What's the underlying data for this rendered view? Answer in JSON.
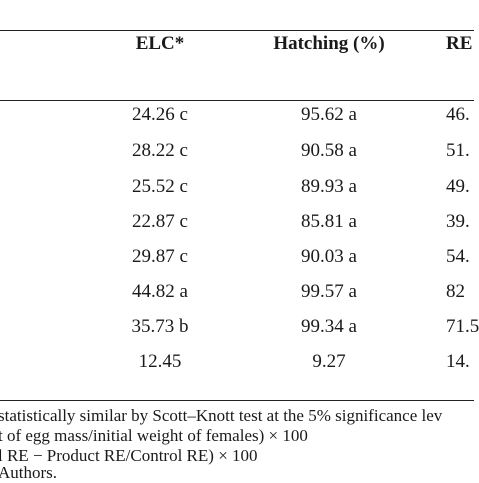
{
  "table": {
    "headers": {
      "elc": "ELC*",
      "hatching": "Hatching (%)",
      "re": "RE"
    },
    "rows": [
      {
        "elc": "24.26 c",
        "hatching": "95.62 a",
        "re": "46."
      },
      {
        "elc": "28.22 c",
        "hatching": "90.58 a",
        "re": "51."
      },
      {
        "elc": "25.52 c",
        "hatching": "89.93 a",
        "re": "49."
      },
      {
        "elc": "22.87 c",
        "hatching": "85.81 a",
        "re": "39."
      },
      {
        "elc": "29.87 c",
        "hatching": "90.03 a",
        "re": "54."
      },
      {
        "elc": "44.82 a",
        "hatching": "99.57 a",
        "re": "82"
      },
      {
        "elc": "35.73 b",
        "hatching": "99.34 a",
        "re": "71.5"
      },
      {
        "elc": "12.45",
        "hatching": "9.27",
        "re": "14."
      }
    ]
  },
  "footnotes": [
    "statistically similar by Scott–Knott test at the 5% significance lev",
    "t of egg mass/initial weight of females) × 100",
    "l RE − Product RE/Control RE) × 100",
    "Authors."
  ]
}
